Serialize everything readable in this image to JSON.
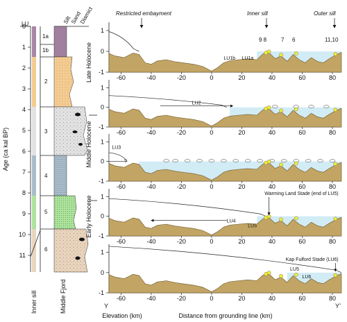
{
  "colors": {
    "seabed": "#c2a564",
    "water": "#d2ecf6",
    "marker": "#f1ee33",
    "lu1": "#a786a6",
    "lu2": "#f4cc92",
    "lu3": "#e2e2e2",
    "lu4": "#a9bcc9",
    "lu5": "#aee39e",
    "lu6": "#e9d4be",
    "arrow": "#e03030"
  },
  "core_axis": {
    "label": "Age (ca kal BP)",
    "ticks": [
      "0",
      "1",
      "2",
      "3",
      "4",
      "5",
      "6",
      "7",
      "8",
      "9",
      "10",
      "11"
    ],
    "grain_headers": [
      "LU",
      "Silt",
      "Sand",
      "Diamict"
    ],
    "unit_labels": [
      "1a",
      "1b",
      "2",
      "3",
      "4",
      "5",
      "6"
    ],
    "unit_boundaries": [
      0.0,
      0.85,
      1.45,
      3.9,
      6.2,
      8.0,
      10.4,
      11.9
    ],
    "core_names": [
      "Inner sill",
      "Middle Fjord"
    ]
  },
  "panels": {
    "titles": [
      "Late Holocene",
      "Middle Holocene",
      "Early Holocene"
    ],
    "location_labels": [
      "Restricted embayment",
      "Inner sill",
      "Outer sill"
    ],
    "site_labels": [
      "9 8",
      "7",
      "6",
      "11,10"
    ],
    "y_ticks": [
      "1",
      "0",
      "-1"
    ],
    "x_ticks": [
      "-60",
      "-40",
      "-20",
      "0",
      "20",
      "40",
      "60",
      "80"
    ],
    "x_label": "Distance from grounding line (km)",
    "y_label": "Elevation (km)",
    "section_ends": [
      "Y",
      "Y’"
    ],
    "unit_tags": {
      "p1": [
        "LU1b",
        "LU1a"
      ],
      "p2": [
        "LU2"
      ],
      "p3": [
        "LU3",
        "?"
      ],
      "p4": [
        "LU4",
        "LU5"
      ],
      "p5": [
        "LU5",
        "LU6"
      ]
    },
    "annotations": [
      "Warming Land Stade (end of LU5)",
      "Kap Fulford Stade (LU6)"
    ]
  }
}
